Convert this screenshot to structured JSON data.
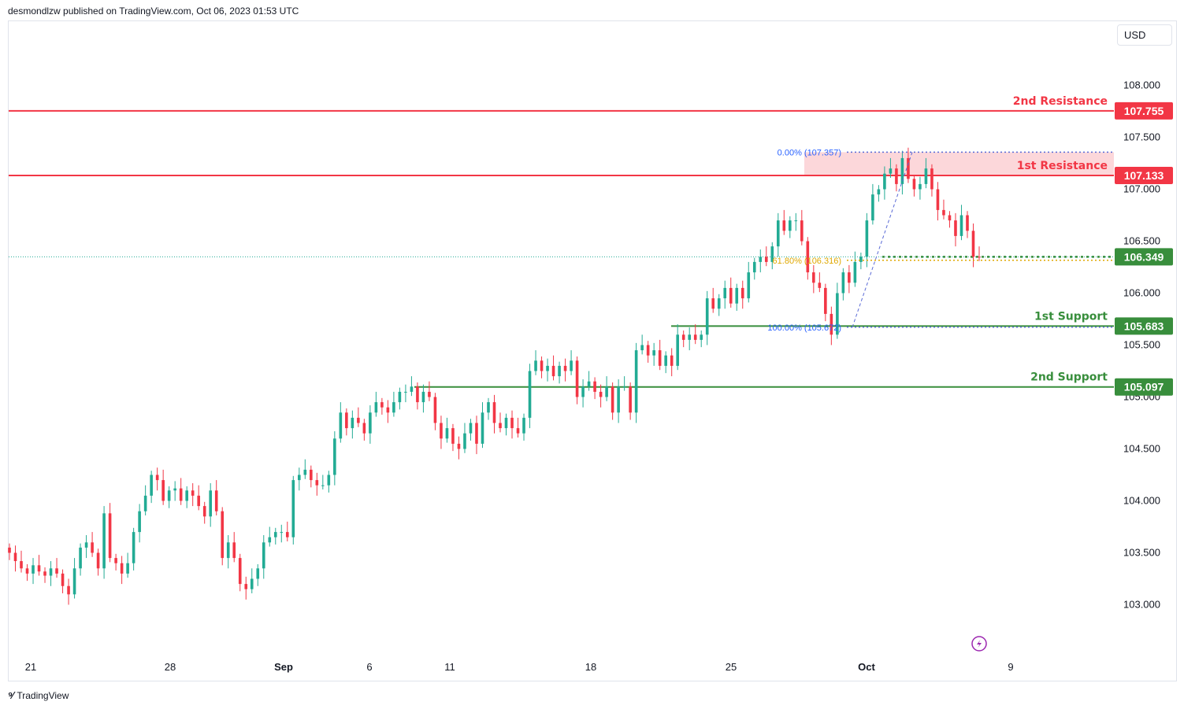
{
  "header": {
    "published": "desmondlzw published on TradingView.com, Oct 06, 2023 01:53 UTC"
  },
  "footer": {
    "brand": "TradingView"
  },
  "currency": "USD",
  "colors": {
    "up": "#22ab94",
    "down": "#f23645",
    "resistance": "#f23645",
    "support": "#388e3c",
    "fib": "#7e57c2"
  },
  "chart_data": {
    "type": "candlestick",
    "y_range": [
      102.6,
      108.3
    ],
    "y_ticks": [
      "103.000",
      "103.500",
      "104.000",
      "104.500",
      "105.000",
      "105.500",
      "106.000",
      "106.500",
      "107.000",
      "107.500",
      "108.000"
    ],
    "x_ticks": [
      "21",
      "28",
      "Sep",
      "6",
      "11",
      "18",
      "25",
      "Oct",
      "9"
    ],
    "current_price": "106.349",
    "levels": [
      {
        "label": "2nd Resistance",
        "price": "107.755",
        "kind": "resistance"
      },
      {
        "label": "1st Resistance",
        "price": "107.133",
        "kind": "resistance"
      },
      {
        "label": "1st Support",
        "price": "105.683",
        "kind": "support"
      },
      {
        "label": "2nd Support",
        "price": "105.097",
        "kind": "support"
      }
    ],
    "fib": [
      {
        "label": "0.00% (107.357)",
        "price": 107.357
      },
      {
        "label": "61.80% (106.316)",
        "price": 106.316
      },
      {
        "label": "100.00% (105.672)",
        "price": 105.672
      }
    ],
    "closes": [
      103.5,
      103.42,
      103.35,
      103.3,
      103.38,
      103.32,
      103.28,
      103.35,
      103.3,
      103.18,
      103.1,
      103.35,
      103.55,
      103.6,
      103.5,
      103.35,
      103.88,
      103.45,
      103.4,
      103.3,
      103.4,
      103.7,
      103.9,
      104.05,
      104.25,
      104.2,
      104.0,
      104.1,
      104.12,
      104.0,
      104.1,
      104.05,
      103.95,
      103.85,
      104.1,
      103.9,
      103.45,
      103.6,
      103.45,
      103.2,
      103.15,
      103.25,
      103.35,
      103.6,
      103.65,
      103.7,
      103.7,
      103.65,
      104.2,
      104.25,
      104.3,
      104.2,
      104.15,
      104.15,
      104.25,
      104.6,
      104.85,
      104.7,
      104.8,
      104.75,
      104.65,
      104.85,
      104.95,
      104.9,
      104.85,
      104.95,
      105.05,
      105.05,
      105.1,
      104.95,
      105.05,
      105.0,
      104.75,
      104.6,
      104.7,
      104.55,
      104.5,
      104.65,
      104.75,
      104.55,
      104.85,
      104.95,
      104.75,
      104.7,
      104.8,
      104.7,
      104.65,
      104.8,
      105.25,
      105.35,
      105.25,
      105.3,
      105.2,
      105.3,
      105.25,
      105.35,
      105.0,
      105.1,
      105.15,
      105.05,
      105.0,
      105.1,
      104.85,
      105.1,
      105.1,
      104.85,
      105.45,
      105.5,
      105.4,
      105.45,
      105.3,
      105.4,
      105.3,
      105.6,
      105.55,
      105.6,
      105.55,
      105.6,
      105.95,
      105.85,
      105.95,
      106.05,
      105.9,
      106.05,
      105.95,
      106.2,
      106.3,
      106.35,
      106.3,
      106.45,
      106.7,
      106.6,
      106.7,
      106.7,
      106.5,
      106.2,
      106.1,
      106.05,
      105.8,
      105.6,
      106.0,
      106.2,
      106.1,
      106.3,
      106.35,
      106.7,
      106.95,
      107.0,
      107.15,
      107.2,
      107.05,
      107.3,
      107.1,
      107.0,
      107.05,
      107.2,
      107.0,
      106.8,
      106.75,
      106.7,
      106.55,
      106.75,
      106.6,
      106.35,
      106.349
    ]
  }
}
